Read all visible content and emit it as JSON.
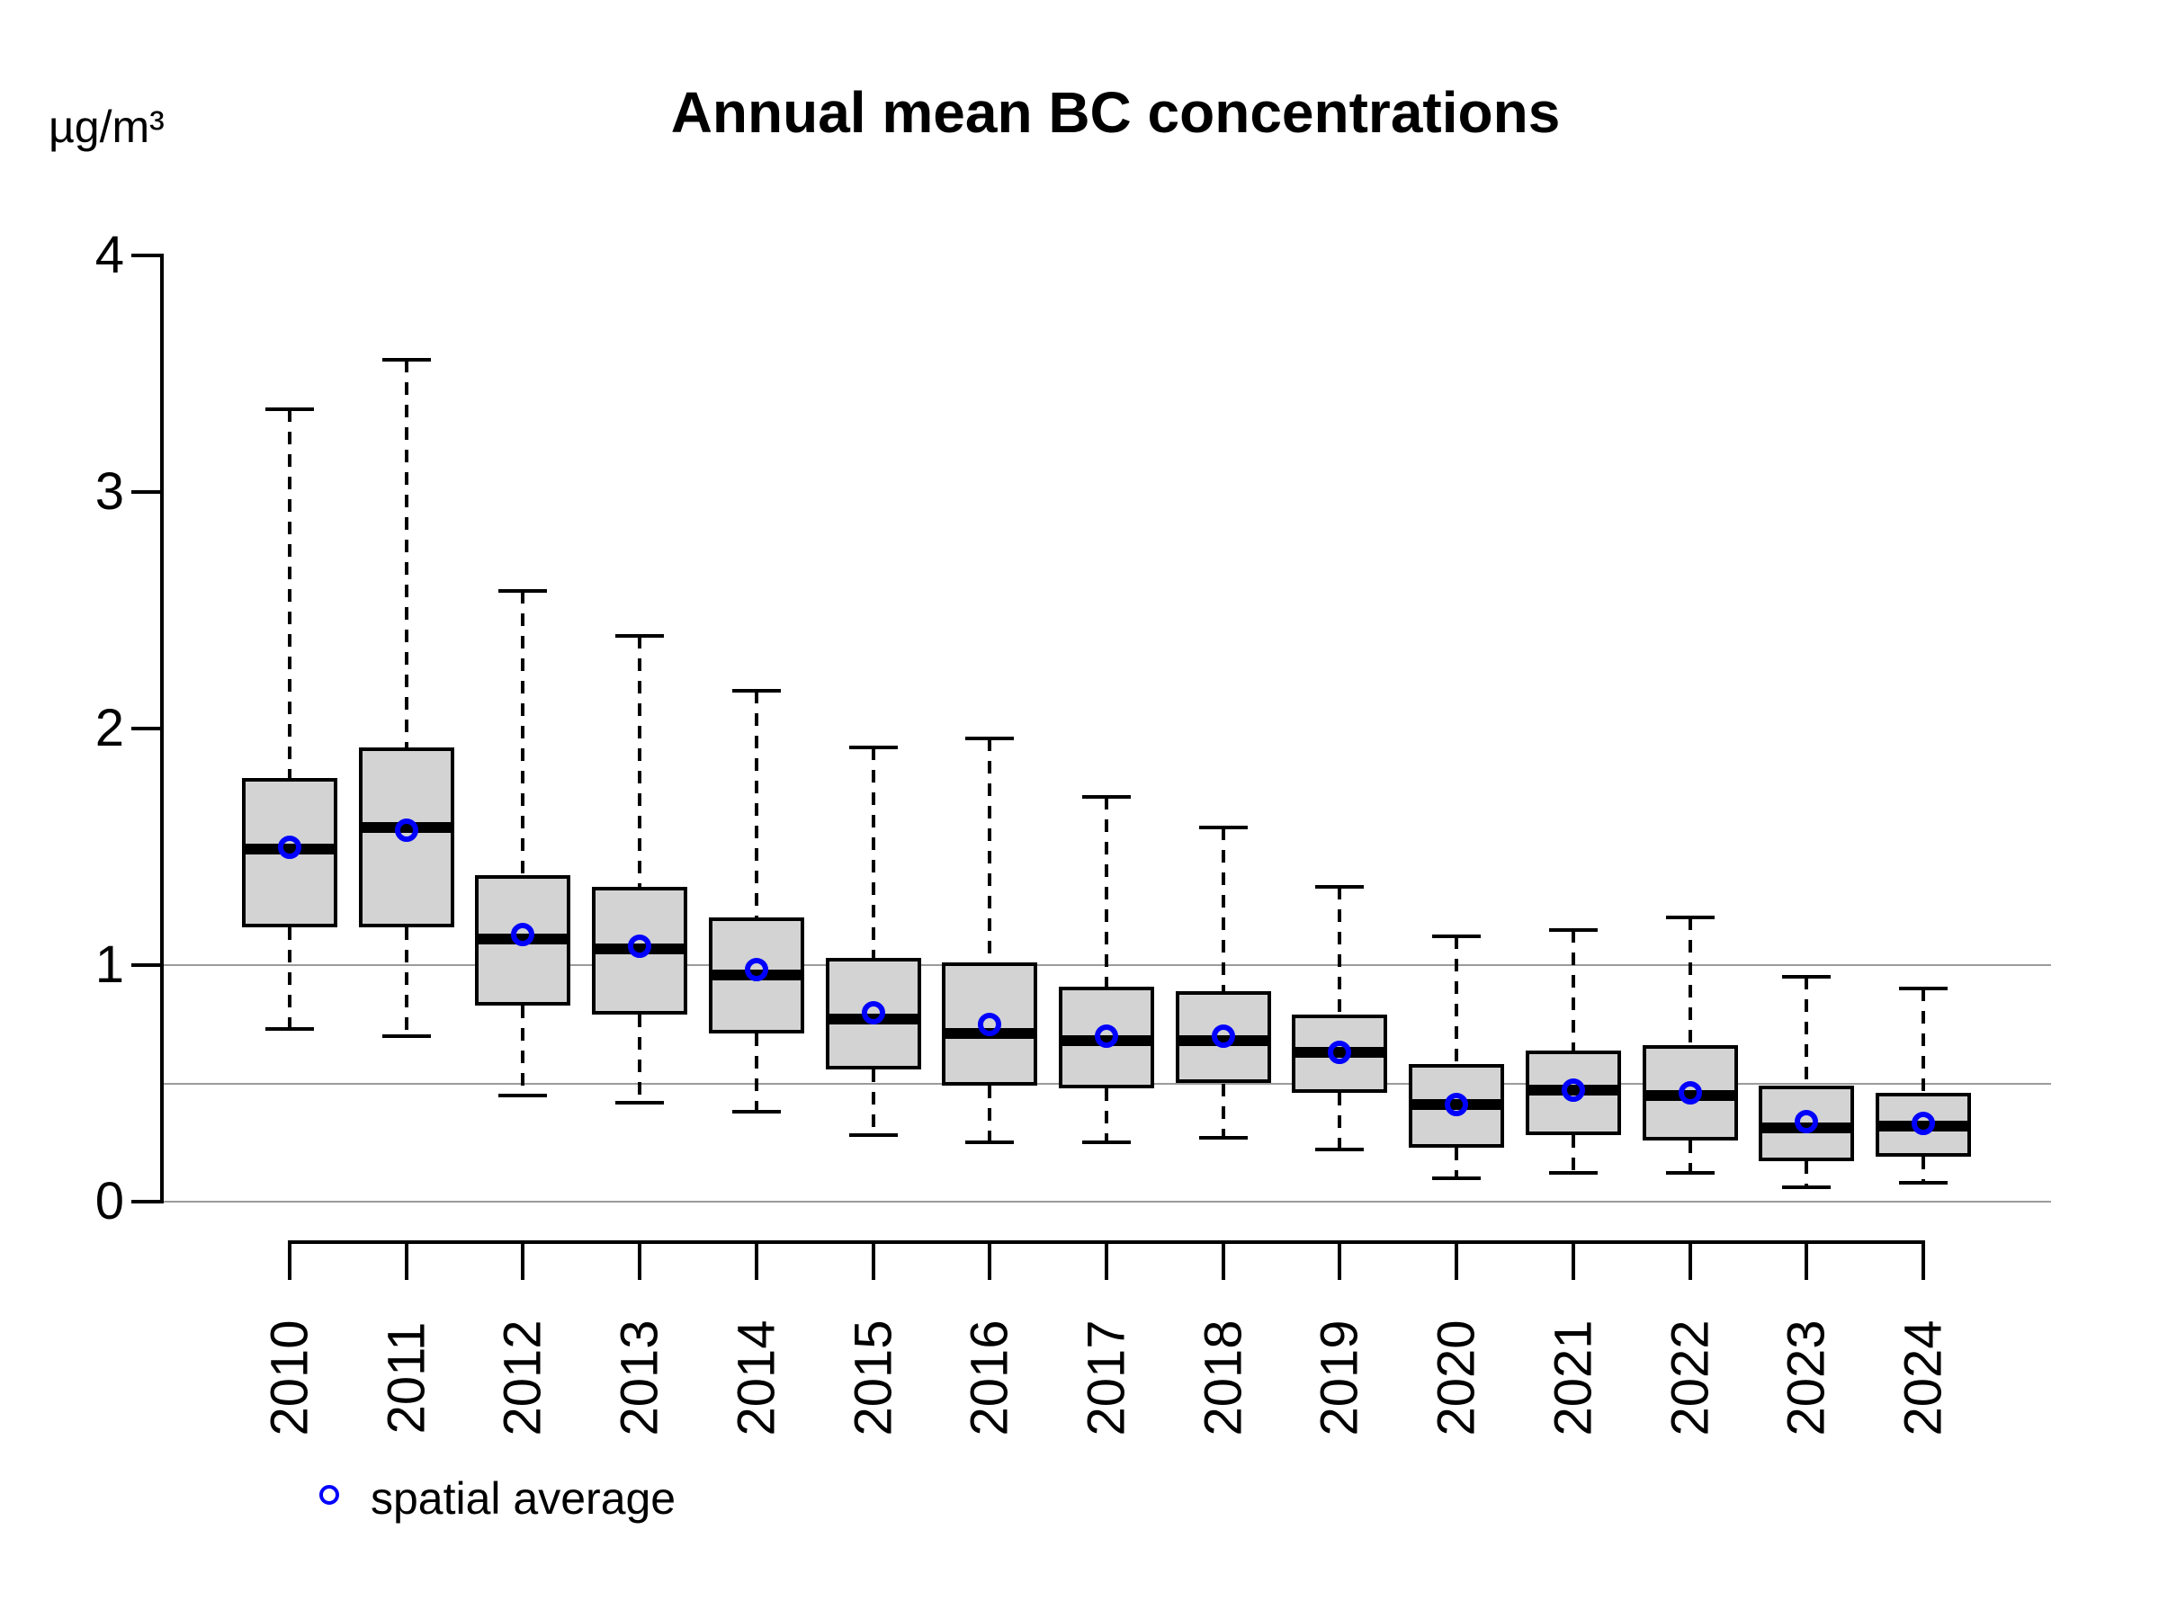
{
  "page": {
    "background": "#ffffff"
  },
  "chart_data": {
    "type": "boxplot",
    "title": "Annual mean BC concentrations",
    "ylabel": "µg/m³",
    "xlabel": "",
    "ylim": [
      0,
      4
    ],
    "y_ticks": [
      0,
      1,
      2,
      3,
      4
    ],
    "gridline_values": [
      0,
      0.5,
      1
    ],
    "grid": "horizontal gridlines at 0, 0.5 and 1 only",
    "legend": {
      "label": "spatial average",
      "marker": "open-circle",
      "position": "bottom-left"
    },
    "categories": [
      "2010",
      "2011",
      "2012",
      "2013",
      "2014",
      "2015",
      "2016",
      "2017",
      "2018",
      "2019",
      "2020",
      "2021",
      "2022",
      "2023",
      "2024"
    ],
    "series": [
      {
        "year": "2010",
        "whisker_low": 0.73,
        "q1": 1.16,
        "median": 1.49,
        "mean": 1.5,
        "q3": 1.79,
        "whisker_high": 3.35
      },
      {
        "year": "2011",
        "whisker_low": 0.7,
        "q1": 1.16,
        "median": 1.58,
        "mean": 1.57,
        "q3": 1.92,
        "whisker_high": 3.56
      },
      {
        "year": "2012",
        "whisker_low": 0.45,
        "q1": 0.83,
        "median": 1.11,
        "mean": 1.13,
        "q3": 1.38,
        "whisker_high": 2.58
      },
      {
        "year": "2013",
        "whisker_low": 0.42,
        "q1": 0.79,
        "median": 1.07,
        "mean": 1.08,
        "q3": 1.33,
        "whisker_high": 2.39
      },
      {
        "year": "2014",
        "whisker_low": 0.38,
        "q1": 0.71,
        "median": 0.96,
        "mean": 0.98,
        "q3": 1.2,
        "whisker_high": 2.16
      },
      {
        "year": "2015",
        "whisker_low": 0.28,
        "q1": 0.56,
        "median": 0.77,
        "mean": 0.8,
        "q3": 1.03,
        "whisker_high": 1.92
      },
      {
        "year": "2016",
        "whisker_low": 0.25,
        "q1": 0.49,
        "median": 0.71,
        "mean": 0.75,
        "q3": 1.01,
        "whisker_high": 1.96
      },
      {
        "year": "2017",
        "whisker_low": 0.25,
        "q1": 0.48,
        "median": 0.68,
        "mean": 0.7,
        "q3": 0.91,
        "whisker_high": 1.71
      },
      {
        "year": "2018",
        "whisker_low": 0.27,
        "q1": 0.5,
        "median": 0.68,
        "mean": 0.7,
        "q3": 0.89,
        "whisker_high": 1.58
      },
      {
        "year": "2019",
        "whisker_low": 0.22,
        "q1": 0.46,
        "median": 0.63,
        "mean": 0.63,
        "q3": 0.79,
        "whisker_high": 1.33
      },
      {
        "year": "2020",
        "whisker_low": 0.1,
        "q1": 0.23,
        "median": 0.41,
        "mean": 0.41,
        "q3": 0.58,
        "whisker_high": 1.12
      },
      {
        "year": "2021",
        "whisker_low": 0.12,
        "q1": 0.28,
        "median": 0.47,
        "mean": 0.47,
        "q3": 0.64,
        "whisker_high": 1.15
      },
      {
        "year": "2022",
        "whisker_low": 0.12,
        "q1": 0.26,
        "median": 0.45,
        "mean": 0.46,
        "q3": 0.66,
        "whisker_high": 1.2
      },
      {
        "year": "2023",
        "whisker_low": 0.06,
        "q1": 0.17,
        "median": 0.31,
        "mean": 0.34,
        "q3": 0.49,
        "whisker_high": 0.95
      },
      {
        "year": "2024",
        "whisker_low": 0.08,
        "q1": 0.19,
        "median": 0.32,
        "mean": 0.33,
        "q3": 0.46,
        "whisker_high": 0.9
      }
    ],
    "colors": {
      "box_fill": "#d3d3d3",
      "box_border": "#000000",
      "median": "#000000",
      "whisker": "#000000",
      "mean_marker": "#0000ff",
      "gridline": "#9b9b9b",
      "axis": "#000000",
      "text": "#000000"
    }
  }
}
